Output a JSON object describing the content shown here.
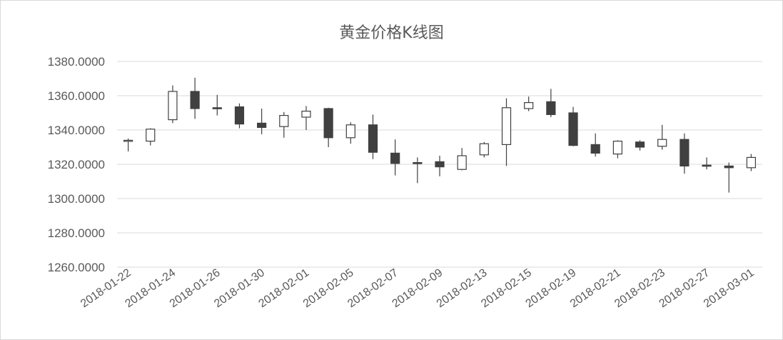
{
  "chart_data": {
    "type": "candlestick",
    "title": "黄金价格K线图",
    "xlabel": "",
    "ylabel": "",
    "ylim": [
      1260,
      1380
    ],
    "yticks": [
      1260,
      1280,
      1300,
      1320,
      1340,
      1360,
      1380
    ],
    "ytick_labels": [
      "1260.0000",
      "1280.0000",
      "1300.0000",
      "1320.0000",
      "1340.0000",
      "1360.0000",
      "1380.0000"
    ],
    "xtick_labels": [
      "2018-01-22",
      "2018-01-24",
      "2018-01-26",
      "2018-01-30",
      "2018-02-01",
      "2018-02-05",
      "2018-02-07",
      "2018-02-09",
      "2018-02-13",
      "2018-02-15",
      "2018-02-19",
      "2018-02-21",
      "2018-02-23",
      "2018-02-27",
      "2018-03-01"
    ],
    "grid": true,
    "up_color": "#ffffff",
    "down_color": "#404040",
    "candles": [
      {
        "open": 1333.5,
        "high": 1335,
        "low": 1327.5,
        "close": 1334
      },
      {
        "open": 1333.5,
        "high": 1341,
        "low": 1331,
        "close": 1340.5
      },
      {
        "open": 1346,
        "high": 1366,
        "low": 1344,
        "close": 1362.5
      },
      {
        "open": 1362.5,
        "high": 1370.5,
        "low": 1346.5,
        "close": 1352.5
      },
      {
        "open": 1353,
        "high": 1360.5,
        "low": 1348.5,
        "close": 1352.5
      },
      {
        "open": 1353.5,
        "high": 1355.5,
        "low": 1341,
        "close": 1343.5
      },
      {
        "open": 1344,
        "high": 1352.5,
        "low": 1337.5,
        "close": 1341.5
      },
      {
        "open": 1342,
        "high": 1350.5,
        "low": 1335.5,
        "close": 1348.5
      },
      {
        "open": 1347.5,
        "high": 1354,
        "low": 1340,
        "close": 1351
      },
      {
        "open": 1352.5,
        "high": 1353,
        "low": 1330,
        "close": 1335.5
      },
      {
        "open": 1335.5,
        "high": 1344.5,
        "low": 1332,
        "close": 1343
      },
      {
        "open": 1343,
        "high": 1349,
        "low": 1323,
        "close": 1327
      },
      {
        "open": 1326.5,
        "high": 1334.5,
        "low": 1313.5,
        "close": 1320.5
      },
      {
        "open": 1321,
        "high": 1324,
        "low": 1309,
        "close": 1320.5
      },
      {
        "open": 1321.5,
        "high": 1325,
        "low": 1313,
        "close": 1318.5
      },
      {
        "open": 1317,
        "high": 1329.5,
        "low": 1316.5,
        "close": 1325
      },
      {
        "open": 1325.5,
        "high": 1333,
        "low": 1324,
        "close": 1332
      },
      {
        "open": 1331.5,
        "high": 1358.5,
        "low": 1319,
        "close": 1353
      },
      {
        "open": 1352.5,
        "high": 1359.5,
        "low": 1351,
        "close": 1356
      },
      {
        "open": 1356.5,
        "high": 1364,
        "low": 1347.5,
        "close": 1349
      },
      {
        "open": 1350,
        "high": 1353.5,
        "low": 1330.5,
        "close": 1331
      },
      {
        "open": 1331.5,
        "high": 1338,
        "low": 1324.5,
        "close": 1326.5
      },
      {
        "open": 1326,
        "high": 1334,
        "low": 1323.5,
        "close": 1333.5
      },
      {
        "open": 1333,
        "high": 1334,
        "low": 1328,
        "close": 1330
      },
      {
        "open": 1330.5,
        "high": 1343,
        "low": 1328.5,
        "close": 1334.5
      },
      {
        "open": 1334.5,
        "high": 1338,
        "low": 1314.5,
        "close": 1319
      },
      {
        "open": 1319.5,
        "high": 1324,
        "low": 1317,
        "close": 1319
      },
      {
        "open": 1319,
        "high": 1321,
        "low": 1303.5,
        "close": 1318
      },
      {
        "open": 1318,
        "high": 1326,
        "low": 1316,
        "close": 1324
      }
    ]
  }
}
